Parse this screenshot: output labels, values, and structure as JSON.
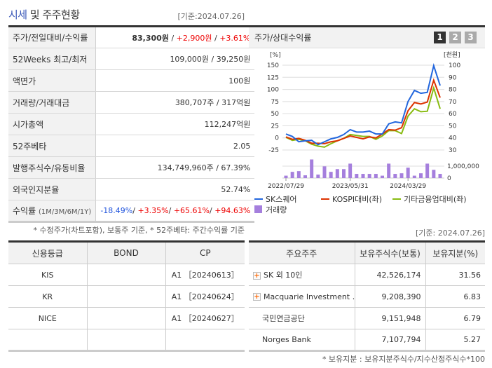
{
  "header": {
    "title_highlight": "시세",
    "title_rest": " 및 주주현황",
    "as_of": "[기준:2024.07.26]"
  },
  "quote": {
    "rows": [
      {
        "label": "주가/전일대비/수익률",
        "price": "83,300원",
        "change": "+2,900원",
        "rate": "+3.61%"
      },
      {
        "label": "52Weeks 최고/최저",
        "value": "109,000원 / 39,250원"
      },
      {
        "label": "액면가",
        "value": "100원"
      },
      {
        "label": "거래량/거래대금",
        "value": "380,707주 / 317억원"
      },
      {
        "label": "시가총액",
        "value": "112,247억원"
      },
      {
        "label": "52주베타",
        "value": "2.05"
      },
      {
        "label": "발행주식수/유동비율",
        "value": "134,749,960주 / 67.39%"
      },
      {
        "label": "외국인지분율",
        "value": "52.74%"
      },
      {
        "label": "수익률",
        "label_sub": "(1M/3M/6M/1Y)",
        "r1m": "-18.49%",
        "r3m": "+3.35%",
        "r6m": "+65.61%",
        "r1y": "+94.63%"
      }
    ],
    "note": "* 수정주가(차트포함), 보통주 기준, * 52주베타: 주간수익률 기준"
  },
  "chart_panel": {
    "title": "주가/상대수익률",
    "pages": [
      "1",
      "2",
      "3"
    ],
    "active_page": "1"
  },
  "chart_data": {
    "type": "line",
    "left_axis_label": "[%]",
    "right_axis_label": "[천원]",
    "left_ticks": [
      "150",
      "125",
      "100",
      "75",
      "50",
      "25",
      "0",
      "-25"
    ],
    "right_ticks": [
      "100",
      "90",
      "80",
      "70",
      "60",
      "50",
      "40",
      "30"
    ],
    "ylim": [
      -25,
      150
    ],
    "right_ylim": [
      30,
      100
    ],
    "x_ticks": [
      "2022/07/29",
      "2023/05/31",
      "2024/03/29"
    ],
    "series": [
      {
        "name": "SK스퀘어",
        "color": "#2266dd",
        "values": [
          8,
          3,
          -8,
          -6,
          -5,
          -14,
          -8,
          -2,
          1,
          7,
          17,
          12,
          12,
          14,
          8,
          8,
          29,
          33,
          31,
          75,
          98,
          92,
          94,
          149,
          108
        ]
      },
      {
        "name": "KOSPI대비(좌)",
        "color": "#dd3300",
        "values": [
          2,
          -3,
          -1,
          -5,
          -11,
          -11,
          -12,
          -8,
          -6,
          -1,
          4,
          1,
          -2,
          2,
          0,
          8,
          17,
          16,
          21,
          56,
          73,
          70,
          74,
          119,
          83
        ]
      },
      {
        "name": "기타금융업대비(좌)",
        "color": "#88bb11",
        "values": [
          1,
          -5,
          -3,
          -6,
          -13,
          -17,
          -19,
          -12,
          -6,
          -1,
          7,
          5,
          3,
          3,
          -3,
          4,
          15,
          15,
          9,
          45,
          60,
          54,
          55,
          103,
          60
        ]
      }
    ],
    "volume": {
      "name": "거래량",
      "color": "#a57fdd",
      "ticks": [
        "1,000,000",
        "0"
      ],
      "ylim": [
        0,
        1500000
      ],
      "values": [
        200000,
        520000,
        580000,
        230000,
        1560000,
        290000,
        980000,
        520000,
        750000,
        750000,
        1210000,
        350000,
        350000,
        350000,
        350000,
        200000,
        1210000,
        350000,
        400000,
        870000,
        200000,
        400000,
        1210000,
        690000,
        350000
      ]
    }
  },
  "credit": {
    "headers": [
      "신용등급",
      "BOND",
      "CP"
    ],
    "rows": [
      [
        "KIS",
        "",
        "A1 ［20240613］"
      ],
      [
        "KR",
        "",
        "A1 ［20240624］"
      ],
      [
        "NICE",
        "",
        "A1 ［20240627］"
      ],
      [
        "",
        "",
        ""
      ]
    ]
  },
  "holders": {
    "as_of": "[기준: 2024.07.26]",
    "headers": [
      "주요주주",
      "보유주식수(보통)",
      "보유지분(%)"
    ],
    "rows": [
      {
        "name": "SK 외 10인",
        "shares": "42,526,174",
        "pct": "31.56",
        "expand": true
      },
      {
        "name": "Macquarie Investment …",
        "shares": "9,208,390",
        "pct": "6.83",
        "expand": true
      },
      {
        "name": "국민연금공단",
        "shares": "9,151,948",
        "pct": "6.79",
        "expand": false
      },
      {
        "name": "Norges Bank",
        "shares": "7,107,794",
        "pct": "5.27",
        "expand": false
      }
    ],
    "note": "* 보유지분 : 보유지분주식수/지수산정주식수*100"
  }
}
